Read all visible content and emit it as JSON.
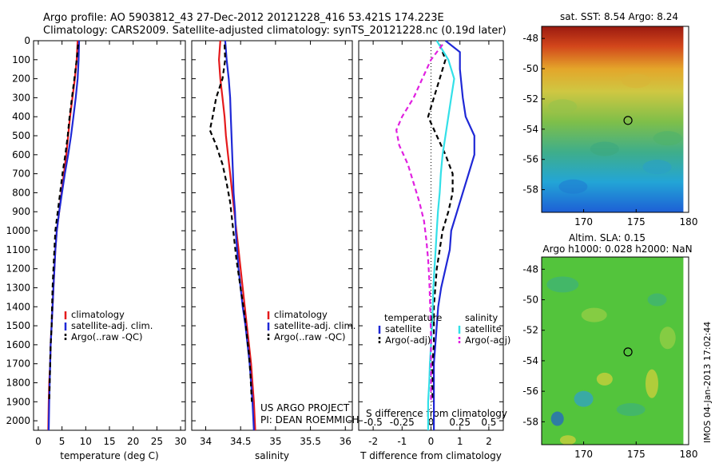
{
  "header": {
    "line1": "Argo profile: AO 5903812_43 27-Dec-2012 20121228_416 53.421S 174.223E",
    "line2": "Climatology: CARS2009. Satellite-adjusted climatology: synTS_20121228.nc (0.19d later)"
  },
  "credits": {
    "project": "US ARGO PROJECT",
    "pi": "PI: DEAN ROEMMICH",
    "stamp": "IMOS 04-Jan-2013 17:02:44"
  },
  "colors": {
    "climatology": "#e41a1c",
    "satellite": "#1f28d6",
    "argo": "#000000",
    "sal_satellite": "#33e0e8",
    "sal_argo": "#e020e0"
  },
  "chart_data": [
    {
      "type": "line",
      "panel": "temperature",
      "xlabel": "temperature (deg C)",
      "ylabel": "",
      "xlim": [
        -1,
        31
      ],
      "ylim": [
        2050,
        0
      ],
      "xticks": [
        0,
        5,
        10,
        15,
        20,
        25,
        30
      ],
      "yticks": [
        0,
        100,
        200,
        300,
        400,
        500,
        600,
        700,
        800,
        900,
        1000,
        1100,
        1200,
        1300,
        1400,
        1500,
        1600,
        1700,
        1800,
        1900,
        2000
      ],
      "legend": [
        "climatology",
        "satellite-adj. clim.",
        "Argo(..raw -QC)"
      ],
      "series": [
        {
          "name": "climatology",
          "style": "solid",
          "color_key": "climatology",
          "x": [
            8.3,
            8.1,
            7.7,
            7.2,
            6.7,
            6.3,
            5.9,
            5.4,
            4.9,
            4.4,
            3.9,
            3.6,
            3.4,
            3.2,
            3.0,
            2.8,
            2.6,
            2.5,
            2.3,
            2.2,
            2.1
          ],
          "y": [
            0,
            100,
            200,
            300,
            400,
            500,
            600,
            700,
            800,
            900,
            1000,
            1100,
            1200,
            1300,
            1400,
            1500,
            1600,
            1700,
            1800,
            1900,
            2050
          ]
        },
        {
          "name": "satellite-adj. clim.",
          "style": "solid",
          "color_key": "satellite",
          "x": [
            8.6,
            8.5,
            8.3,
            7.9,
            7.4,
            6.9,
            6.3,
            5.6,
            5.0,
            4.4,
            3.9,
            3.6,
            3.4,
            3.2,
            3.0,
            2.8,
            2.6,
            2.5,
            2.4,
            2.3,
            2.2
          ],
          "y": [
            0,
            100,
            200,
            300,
            400,
            500,
            600,
            700,
            800,
            900,
            1000,
            1100,
            1200,
            1300,
            1400,
            1500,
            1600,
            1700,
            1800,
            1900,
            2050
          ]
        },
        {
          "name": "Argo(..raw -QC)",
          "style": "dashed",
          "color_key": "argo",
          "x": [
            8.4,
            8.1,
            7.6,
            7.1,
            6.6,
            6.2,
            5.7,
            5.1,
            4.6,
            4.1,
            3.6,
            3.4,
            3.2,
            3.0,
            2.9,
            2.8,
            2.6,
            2.5,
            2.4,
            2.3
          ],
          "y": [
            20,
            100,
            200,
            300,
            400,
            500,
            600,
            700,
            800,
            900,
            1000,
            1100,
            1200,
            1300,
            1400,
            1500,
            1600,
            1700,
            1800,
            1900
          ]
        }
      ]
    },
    {
      "type": "line",
      "panel": "salinity",
      "xlabel": "salinity",
      "ylabel": "",
      "xlim": [
        33.8,
        36.1
      ],
      "ylim": [
        2050,
        0
      ],
      "xticks": [
        34,
        34.5,
        35,
        35.5,
        36
      ],
      "legend": [
        "climatology",
        "satellite-adj. clim.",
        "Argo(..raw -QC)"
      ],
      "series": [
        {
          "name": "climatology",
          "style": "solid",
          "color_key": "climatology",
          "x": [
            34.21,
            34.19,
            34.21,
            34.24,
            34.27,
            34.29,
            34.32,
            34.35,
            34.38,
            34.41,
            34.44,
            34.47,
            34.5,
            34.53,
            34.56,
            34.59,
            34.62,
            34.65,
            34.67,
            34.69,
            34.71
          ],
          "y": [
            0,
            100,
            200,
            300,
            400,
            500,
            600,
            700,
            800,
            900,
            1000,
            1100,
            1200,
            1300,
            1400,
            1500,
            1600,
            1700,
            1800,
            1900,
            2050
          ]
        },
        {
          "name": "satellite-adj. clim.",
          "style": "solid",
          "color_key": "satellite",
          "x": [
            34.28,
            34.3,
            34.33,
            34.35,
            34.36,
            34.37,
            34.38,
            34.39,
            34.4,
            34.42,
            34.43,
            34.45,
            34.47,
            34.5,
            34.53,
            34.57,
            34.6,
            34.63,
            34.65,
            34.67,
            34.69
          ],
          "y": [
            0,
            100,
            200,
            300,
            400,
            500,
            600,
            700,
            800,
            900,
            1000,
            1100,
            1200,
            1300,
            1400,
            1500,
            1600,
            1700,
            1800,
            1900,
            2050
          ]
        },
        {
          "name": "Argo(..raw -QC)",
          "style": "dashed",
          "color_key": "argo",
          "x": [
            34.27,
            34.28,
            34.24,
            34.15,
            34.1,
            34.06,
            34.15,
            34.24,
            34.3,
            34.35,
            34.38,
            34.41,
            34.44,
            34.48,
            34.52,
            34.56,
            34.59,
            34.62,
            34.64,
            34.66
          ],
          "y": [
            20,
            100,
            200,
            300,
            400,
            470,
            550,
            650,
            750,
            850,
            950,
            1050,
            1150,
            1250,
            1350,
            1450,
            1550,
            1650,
            1750,
            1900
          ]
        }
      ]
    },
    {
      "type": "line",
      "panel": "differences",
      "xlabel": "T difference from climatology",
      "xlabel_top": "S difference from climatology",
      "xlim": [
        -2.5,
        2.5
      ],
      "xticks": [
        -2,
        -1,
        0,
        1,
        2
      ],
      "xticks_top": [
        "-0.5",
        "-0.25",
        "0",
        "0.25",
        "0.5"
      ],
      "ylim": [
        2050,
        0
      ],
      "legend_titles": [
        "temperature",
        "salinity"
      ],
      "legend": [
        "satellite",
        "Argo(-adj)",
        "satellite",
        "Argo(-adj)"
      ],
      "series": [
        {
          "name": "satellite",
          "group": "temperature",
          "style": "solid",
          "color_key": "satellite",
          "x": [
            0.5,
            1.0,
            1.0,
            1.1,
            1.2,
            1.5,
            1.5,
            1.3,
            1.1,
            0.9,
            0.7,
            0.65,
            0.5,
            0.35,
            0.25,
            0.2,
            0.15,
            0.1,
            0.1,
            0.1,
            0.1
          ],
          "y": [
            0,
            60,
            150,
            300,
            400,
            500,
            600,
            700,
            800,
            900,
            1000,
            1100,
            1200,
            1300,
            1400,
            1500,
            1600,
            1700,
            1800,
            1900,
            2050
          ]
        },
        {
          "name": "Argo(-adj)",
          "group": "temperature",
          "style": "dashed",
          "color_key": "argo",
          "x": [
            0.3,
            0.5,
            0.3,
            0.1,
            -0.1,
            0.2,
            0.5,
            0.75,
            0.75,
            0.6,
            0.4,
            0.3,
            0.2,
            0.15,
            0.1,
            0.1,
            0.1,
            0.05,
            0.05,
            0.05
          ],
          "y": [
            20,
            100,
            200,
            300,
            400,
            500,
            600,
            700,
            800,
            900,
            1000,
            1100,
            1200,
            1300,
            1400,
            1500,
            1600,
            1700,
            1800,
            1900
          ]
        },
        {
          "name": "satellite",
          "group": "salinity",
          "style": "solid",
          "color_key": "sal_satellite",
          "x": [
            0.1,
            0.3,
            0.4,
            0.35,
            0.3,
            0.25,
            0.2,
            0.17,
            0.15,
            0.12,
            0.1,
            0.08,
            0.06,
            0.04,
            0.03,
            0.02,
            0.0,
            -0.02,
            -0.03,
            -0.05,
            -0.05
          ],
          "y": [
            0,
            100,
            200,
            300,
            400,
            500,
            600,
            700,
            800,
            900,
            1000,
            1100,
            1200,
            1300,
            1400,
            1500,
            1600,
            1700,
            1800,
            1900,
            2050
          ]
        },
        {
          "name": "Argo(-adj)",
          "group": "salinity",
          "style": "dashed",
          "color_key": "sal_argo",
          "x": [
            0.2,
            0.0,
            -0.15,
            -0.3,
            -0.5,
            -0.6,
            -0.55,
            -0.4,
            -0.3,
            -0.2,
            -0.12,
            -0.08,
            -0.05,
            -0.03,
            -0.02,
            -0.01,
            0.0,
            0.0,
            0.0,
            0.0
          ],
          "y": [
            20,
            100,
            200,
            300,
            400,
            470,
            550,
            650,
            750,
            850,
            950,
            1050,
            1150,
            1250,
            1350,
            1450,
            1550,
            1650,
            1750,
            1900
          ]
        }
      ]
    },
    {
      "type": "heatmap",
      "panel": "sst_map",
      "title": "sat. SST: 8.54  Argo: 8.24",
      "xticks": [
        170,
        175,
        180
      ],
      "yticks": [
        -48,
        -50,
        -52,
        -54,
        -56,
        -58
      ],
      "xlim": [
        166,
        180
      ],
      "ylim": [
        -59.5,
        -47.2
      ],
      "marker": {
        "lon": 174.223,
        "lat": -53.421
      },
      "colors_by_latitude": [
        {
          "lat": -47.2,
          "color": "#9b1a10"
        },
        {
          "lat": -48.5,
          "color": "#d2461b"
        },
        {
          "lat": -50.0,
          "color": "#e4a52a"
        },
        {
          "lat": -51.5,
          "color": "#cfc742"
        },
        {
          "lat": -53.5,
          "color": "#7fbf49"
        },
        {
          "lat": -55.5,
          "color": "#3fae8a"
        },
        {
          "lat": -57.5,
          "color": "#23a5d6"
        },
        {
          "lat": -59.5,
          "color": "#1d5fd6"
        }
      ]
    },
    {
      "type": "heatmap",
      "panel": "sla_map",
      "title": "Altim. SLA: 0.15",
      "subtitle": "Argo h1000: 0.028 h2000: NaN",
      "xticks": [
        170,
        175,
        180
      ],
      "yticks": [
        -48,
        -50,
        -52,
        -54,
        -56,
        -58
      ],
      "xlim": [
        166,
        180
      ],
      "ylim": [
        -59.5,
        -47.2
      ],
      "marker": {
        "lon": 174.223,
        "lat": -53.421
      },
      "base_color": "#53c43c",
      "patch_colors": [
        "#3db27a",
        "#9bd046",
        "#d8d23b",
        "#2f9fd0",
        "#1f5fcf"
      ]
    }
  ]
}
